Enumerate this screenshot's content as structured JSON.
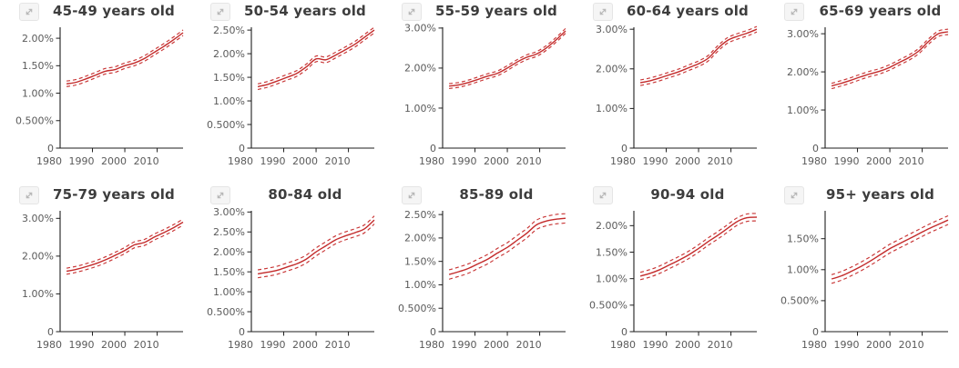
{
  "page": {
    "background": "#ffffff"
  },
  "icons": {
    "expand": "diagonal-expand-arrow-icon"
  },
  "colors": {
    "line": "#c32b2b",
    "band": "#c83434",
    "axis": "#1e1e1e",
    "tick_label": "#5a5a5a",
    "title": "#3d3d3d",
    "icon_glyph": "#b7b7b7",
    "icon_bg": "#f5f5f5",
    "icon_border": "#e5e5e5"
  },
  "chart_data": {
    "type": "line",
    "layout": "small-multiples 2 rows x 5 cols",
    "x_label": "",
    "y_label": "",
    "x_years": [
      1982,
      1985,
      1988,
      1991,
      1994,
      1997,
      2000,
      2003,
      2006,
      2009,
      2012,
      2015,
      2018
    ],
    "x_range": [
      1980,
      2018
    ],
    "x_tick_years": [
      1980,
      1990,
      2000,
      2010
    ],
    "x_tick_labels": [
      "1980",
      "1990",
      "2000",
      "2010"
    ],
    "band_style": "dashed confidence interval above and below solid estimate line",
    "charts": [
      {
        "title": "45-49 years old",
        "values": [
          1.17,
          1.2,
          1.26,
          1.33,
          1.4,
          1.43,
          1.5,
          1.55,
          1.63,
          1.74,
          1.85,
          1.97,
          2.1
        ],
        "ci": 0.05,
        "y_max": 2.2,
        "y_tick_values": [
          0,
          0.5,
          1.0,
          1.5,
          2.0
        ],
        "y_tick_labels": [
          "0",
          "0.500%",
          "1.00%",
          "1.50%",
          "2.00%"
        ]
      },
      {
        "title": "50-54 years old",
        "values": [
          1.3,
          1.35,
          1.42,
          1.5,
          1.58,
          1.72,
          1.89,
          1.87,
          1.97,
          2.08,
          2.2,
          2.35,
          2.5
        ],
        "ci": 0.06,
        "y_max": 2.56,
        "y_tick_values": [
          0,
          0.5,
          1.0,
          1.5,
          2.0,
          2.5
        ],
        "y_tick_labels": [
          "0",
          "0.500%",
          "1.00%",
          "1.50%",
          "2.00%",
          "2.50%"
        ]
      },
      {
        "title": "55-59 years old",
        "values": [
          1.55,
          1.58,
          1.64,
          1.72,
          1.8,
          1.87,
          2.0,
          2.15,
          2.27,
          2.35,
          2.5,
          2.7,
          2.93
        ],
        "ci": 0.06,
        "y_max": 3.02,
        "y_tick_values": [
          0,
          1.0,
          2.0,
          3.0
        ],
        "y_tick_labels": [
          "0",
          "1.00%",
          "2.00%",
          "3.00%"
        ]
      },
      {
        "title": "60-64 years old",
        "values": [
          1.65,
          1.7,
          1.77,
          1.85,
          1.93,
          2.03,
          2.13,
          2.27,
          2.52,
          2.72,
          2.82,
          2.9,
          3.0
        ],
        "ci": 0.07,
        "y_max": 3.05,
        "y_tick_values": [
          0,
          1.0,
          2.0,
          3.0
        ],
        "y_tick_labels": [
          "0",
          "1.00%",
          "2.00%",
          "3.00%"
        ]
      },
      {
        "title": "65-69 years old",
        "values": [
          1.63,
          1.7,
          1.78,
          1.87,
          1.95,
          2.02,
          2.12,
          2.25,
          2.38,
          2.55,
          2.8,
          3.0,
          3.05
        ],
        "ci": 0.07,
        "y_max": 3.17,
        "y_tick_values": [
          0,
          1.0,
          2.0,
          3.0
        ],
        "y_tick_labels": [
          "0",
          "1.00%",
          "2.00%",
          "3.00%"
        ]
      },
      {
        "title": "75-79 years old",
        "values": [
          1.6,
          1.65,
          1.72,
          1.8,
          1.9,
          2.02,
          2.15,
          2.3,
          2.36,
          2.5,
          2.62,
          2.75,
          2.9
        ],
        "ci": 0.08,
        "y_max": 3.2,
        "y_tick_values": [
          0,
          1.0,
          2.0,
          3.0
        ],
        "y_tick_labels": [
          "0",
          "1.00%",
          "2.00%",
          "3.00%"
        ]
      },
      {
        "title": "80-84 old",
        "values": [
          1.45,
          1.49,
          1.54,
          1.62,
          1.7,
          1.82,
          2.0,
          2.15,
          2.3,
          2.4,
          2.48,
          2.58,
          2.8
        ],
        "ci": 0.1,
        "y_max": 3.03,
        "y_tick_values": [
          0,
          0.5,
          1.0,
          1.5,
          2.0,
          2.5,
          3.0
        ],
        "y_tick_labels": [
          "0",
          "0.500%",
          "1.00%",
          "1.50%",
          "2.00%",
          "2.50%",
          "3.00%"
        ]
      },
      {
        "title": "85-89 old",
        "values": [
          1.22,
          1.28,
          1.35,
          1.45,
          1.55,
          1.68,
          1.8,
          1.95,
          2.1,
          2.28,
          2.36,
          2.4,
          2.42
        ],
        "ci": 0.1,
        "y_max": 2.58,
        "y_tick_values": [
          0,
          0.5,
          1.0,
          1.5,
          2.0,
          2.5
        ],
        "y_tick_labels": [
          "0",
          "0.500%",
          "1.00%",
          "1.50%",
          "2.00%",
          "2.50%"
        ]
      },
      {
        "title": "90-94 old",
        "values": [
          1.05,
          1.1,
          1.17,
          1.26,
          1.35,
          1.45,
          1.57,
          1.7,
          1.82,
          1.95,
          2.08,
          2.15,
          2.16
        ],
        "ci": 0.07,
        "y_max": 2.28,
        "y_tick_values": [
          0,
          0.5,
          1.0,
          1.5,
          2.0
        ],
        "y_tick_labels": [
          "0",
          "0.500%",
          "1.00%",
          "1.50%",
          "2.00%"
        ]
      },
      {
        "title": "95+ years old",
        "values": [
          0.85,
          0.9,
          0.97,
          1.05,
          1.14,
          1.24,
          1.34,
          1.42,
          1.5,
          1.58,
          1.66,
          1.73,
          1.8
        ],
        "ci": 0.07,
        "y_max": 1.95,
        "y_tick_values": [
          0,
          0.5,
          1.0,
          1.5
        ],
        "y_tick_labels": [
          "0",
          "0.500%",
          "1.00%",
          "1.50%"
        ]
      }
    ]
  }
}
